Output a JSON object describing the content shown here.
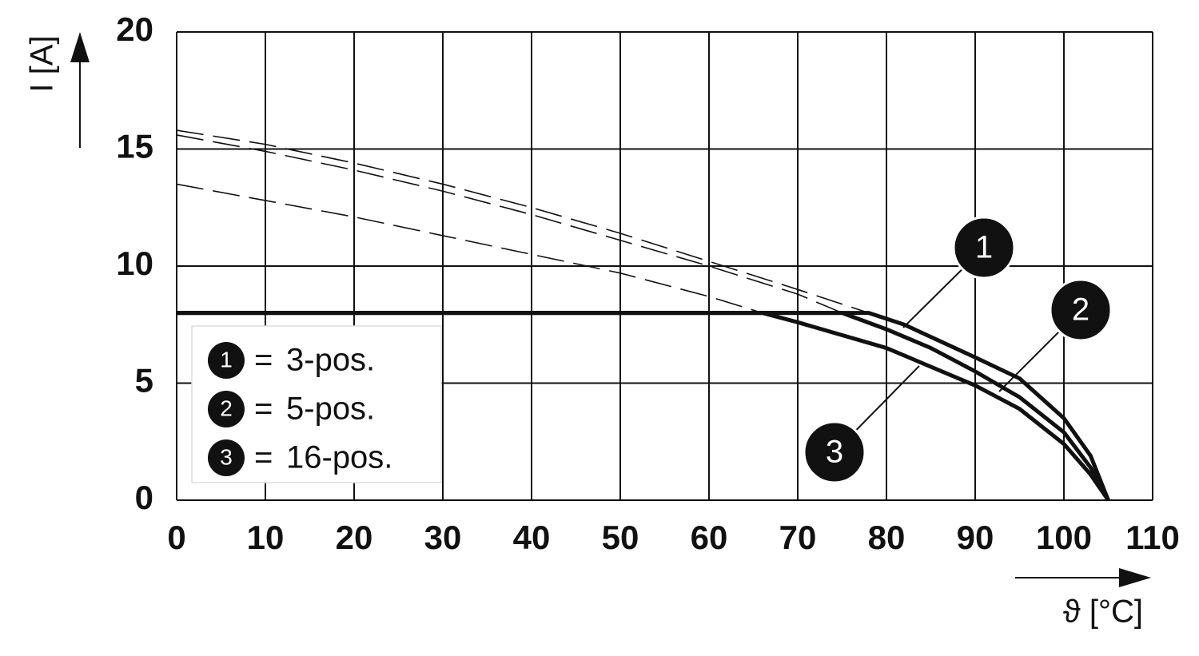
{
  "chart_data": {
    "type": "line",
    "x_label": "ϑ [°C]",
    "y_label": "I [A]",
    "xlim": [
      0,
      110
    ],
    "xticks": [
      0,
      10,
      20,
      30,
      40,
      50,
      60,
      70,
      80,
      90,
      100,
      110
    ],
    "ylim": [
      0,
      20
    ],
    "yticks": [
      0,
      5,
      10,
      15,
      20
    ],
    "grid": true,
    "color": "#111111",
    "legend_joiner": "=",
    "series": [
      {
        "name": "3-pos.",
        "label": "1",
        "x": [
          0,
          78,
          82,
          90,
          95,
          100,
          103,
          105
        ],
        "values": [
          8,
          8,
          7.5,
          6.1,
          5.2,
          3.5,
          1.9,
          0
        ]
      },
      {
        "name": "5-pos.",
        "label": "2",
        "x": [
          0,
          75,
          80,
          85,
          90,
          95,
          100,
          103,
          105
        ],
        "values": [
          8,
          8,
          7.3,
          6.5,
          5.5,
          4.4,
          2.9,
          1.4,
          0
        ]
      },
      {
        "name": "16-pos.",
        "label": "3",
        "x": [
          0,
          66,
          70,
          80,
          90,
          95,
          100,
          103,
          105
        ],
        "values": [
          8,
          8,
          7.6,
          6.5,
          4.9,
          3.9,
          2.4,
          1.1,
          0
        ]
      }
    ],
    "limit_lines": [
      {
        "x": [
          0,
          10,
          20,
          30,
          40,
          50,
          60,
          70,
          78
        ],
        "values": [
          15.8,
          15.2,
          14.4,
          13.5,
          12.5,
          11.4,
          10.2,
          9.0,
          8.0
        ]
      },
      {
        "x": [
          0,
          10,
          20,
          30,
          40,
          50,
          60,
          70,
          75
        ],
        "values": [
          15.6,
          14.9,
          14.1,
          13.2,
          12.2,
          11.1,
          10.0,
          8.8,
          8.0
        ]
      },
      {
        "x": [
          0,
          10,
          20,
          30,
          40,
          50,
          60,
          66
        ],
        "values": [
          13.5,
          12.8,
          12.1,
          11.3,
          10.5,
          9.7,
          8.7,
          8.0
        ]
      }
    ]
  }
}
